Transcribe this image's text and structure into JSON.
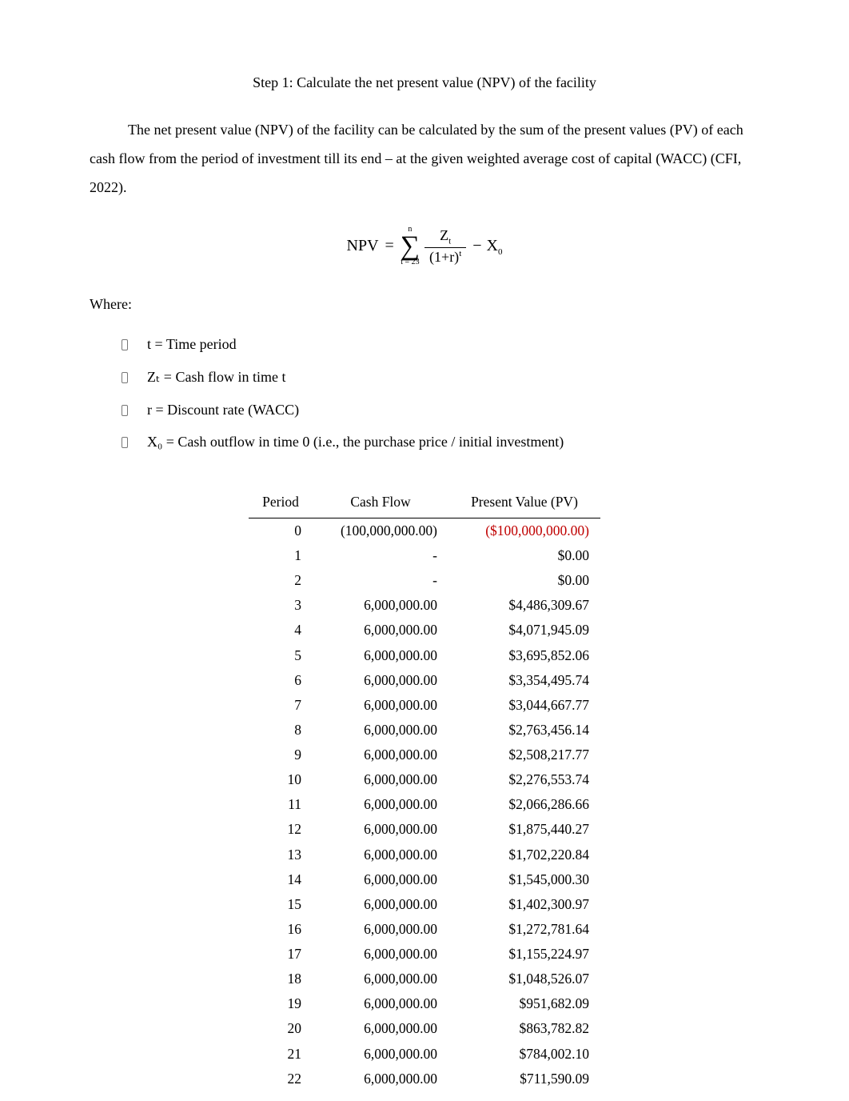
{
  "title": "Step 1: Calculate the net present value (NPV) of the facility",
  "intro": "The net present value (NPV) of the facility can be calculated by the sum of the present values (PV) of each cash flow from the period of investment till its end – at the given weighted average cost of capital (WACC) (CFI, 2022).",
  "formula": {
    "lhs": "NPV",
    "eq": "=",
    "sigma_upper": "n",
    "sigma_symbol": "∑",
    "sigma_lower": "t = 23",
    "num": "Z",
    "num_sub": "t",
    "den_left": "(1+r)",
    "den_sup": "t",
    "minus": "−",
    "tail": "X",
    "tail_sub": "0"
  },
  "where_label": "Where:",
  "defs": [
    "t = Time period",
    "Zₜ = Cash flow in time t",
    "r  = Discount rate (WACC)",
    "X₀ = Cash outflow in time 0 (i.e., the purchase price / initial investment)"
  ],
  "table": {
    "columns": [
      "Period",
      "Cash Flow",
      "Present Value (PV)"
    ],
    "rows": [
      {
        "period": "0",
        "cf": "(100,000,000.00)",
        "pv": "($100,000,000.00)",
        "neg": true
      },
      {
        "period": "1",
        "cf": "-",
        "pv": "$0.00",
        "neg": false
      },
      {
        "period": "2",
        "cf": "-",
        "pv": "$0.00",
        "neg": false
      },
      {
        "period": "3",
        "cf": "6,000,000.00",
        "pv": "$4,486,309.67",
        "neg": false
      },
      {
        "period": "4",
        "cf": "6,000,000.00",
        "pv": "$4,071,945.09",
        "neg": false
      },
      {
        "period": "5",
        "cf": "6,000,000.00",
        "pv": "$3,695,852.06",
        "neg": false
      },
      {
        "period": "6",
        "cf": "6,000,000.00",
        "pv": "$3,354,495.74",
        "neg": false
      },
      {
        "period": "7",
        "cf": "6,000,000.00",
        "pv": "$3,044,667.77",
        "neg": false
      },
      {
        "period": "8",
        "cf": "6,000,000.00",
        "pv": "$2,763,456.14",
        "neg": false
      },
      {
        "period": "9",
        "cf": "6,000,000.00",
        "pv": "$2,508,217.77",
        "neg": false
      },
      {
        "period": "10",
        "cf": "6,000,000.00",
        "pv": "$2,276,553.74",
        "neg": false
      },
      {
        "period": "11",
        "cf": "6,000,000.00",
        "pv": "$2,066,286.66",
        "neg": false
      },
      {
        "period": "12",
        "cf": "6,000,000.00",
        "pv": "$1,875,440.27",
        "neg": false
      },
      {
        "period": "13",
        "cf": "6,000,000.00",
        "pv": "$1,702,220.84",
        "neg": false
      },
      {
        "period": "14",
        "cf": "6,000,000.00",
        "pv": "$1,545,000.30",
        "neg": false
      },
      {
        "period": "15",
        "cf": "6,000,000.00",
        "pv": "$1,402,300.97",
        "neg": false
      },
      {
        "period": "16",
        "cf": "6,000,000.00",
        "pv": "$1,272,781.64",
        "neg": false
      },
      {
        "period": "17",
        "cf": "6,000,000.00",
        "pv": "$1,155,224.97",
        "neg": false
      },
      {
        "period": "18",
        "cf": "6,000,000.00",
        "pv": "$1,048,526.07",
        "neg": false
      },
      {
        "period": "19",
        "cf": "6,000,000.00",
        "pv": "$951,682.09",
        "neg": false
      },
      {
        "period": "20",
        "cf": "6,000,000.00",
        "pv": "$863,782.82",
        "neg": false
      },
      {
        "period": "21",
        "cf": "6,000,000.00",
        "pv": "$784,002.10",
        "neg": false
      },
      {
        "period": "22",
        "cf": "6,000,000.00",
        "pv": "$711,590.09",
        "neg": false
      }
    ]
  },
  "colors": {
    "text": "#000000",
    "negative": "#c00000",
    "background": "#ffffff",
    "rule": "#000000"
  },
  "typography": {
    "font_family": "Times New Roman",
    "body_size_pt": 12,
    "line_spacing": 2.0
  }
}
